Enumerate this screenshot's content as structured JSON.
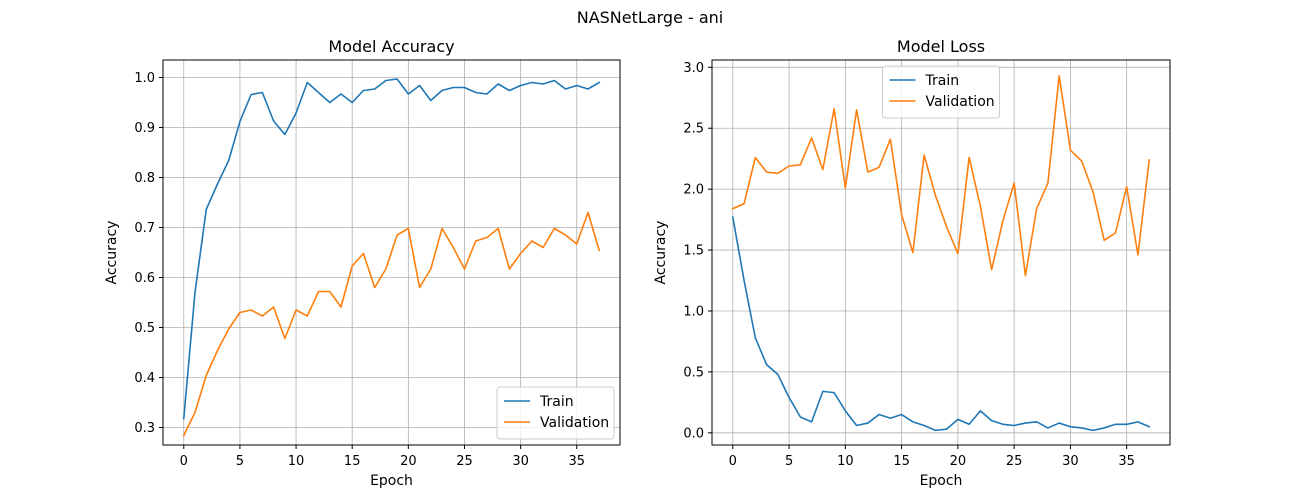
{
  "suptitle": "NASNetLarge - ani",
  "colors": {
    "train": "#1f77b4",
    "validation": "#ff7f0e"
  },
  "chart_data": [
    {
      "type": "line",
      "title": "Model Accuracy",
      "xlabel": "Epoch",
      "ylabel": "Accuracy",
      "xlim": [
        -1.85,
        38.85
      ],
      "ylim": [
        0.265,
        1.035
      ],
      "xticks": [
        0,
        5,
        10,
        15,
        20,
        25,
        30,
        35
      ],
      "yticks": [
        0.3,
        0.4,
        0.5,
        0.6,
        0.7,
        0.8,
        0.9,
        1.0
      ],
      "ytick_labels": [
        "0.3",
        "0.4",
        "0.5",
        "0.6",
        "0.7",
        "0.8",
        "0.9",
        "1.0"
      ],
      "grid": true,
      "legend_position": "lower-right",
      "x": [
        0,
        1,
        2,
        3,
        4,
        5,
        6,
        7,
        8,
        9,
        10,
        11,
        12,
        13,
        14,
        15,
        16,
        17,
        18,
        19,
        20,
        21,
        22,
        23,
        24,
        25,
        26,
        27,
        28,
        29,
        30,
        31,
        32,
        33,
        34,
        35,
        36,
        37
      ],
      "series": [
        {
          "name": "Train",
          "values": [
            0.318,
            0.57,
            0.736,
            0.787,
            0.834,
            0.912,
            0.966,
            0.97,
            0.913,
            0.886,
            0.929,
            0.99,
            0.97,
            0.95,
            0.967,
            0.95,
            0.974,
            0.977,
            0.994,
            0.997,
            0.967,
            0.984,
            0.954,
            0.974,
            0.98,
            0.98,
            0.97,
            0.967,
            0.987,
            0.974,
            0.984,
            0.99,
            0.987,
            0.994,
            0.977,
            0.984,
            0.977,
            0.99
          ]
        },
        {
          "name": "Validation",
          "values": [
            0.284,
            0.33,
            0.404,
            0.454,
            0.497,
            0.53,
            0.535,
            0.523,
            0.541,
            0.478,
            0.535,
            0.523,
            0.572,
            0.572,
            0.541,
            0.623,
            0.648,
            0.58,
            0.617,
            0.685,
            0.698,
            0.58,
            0.617,
            0.698,
            0.66,
            0.617,
            0.673,
            0.68,
            0.698,
            0.617,
            0.648,
            0.673,
            0.66,
            0.698,
            0.685,
            0.667,
            0.73,
            0.654
          ]
        }
      ]
    },
    {
      "type": "line",
      "title": "Model Loss",
      "xlabel": "Epoch",
      "ylabel": "Accuracy",
      "xlim": [
        -1.85,
        38.85
      ],
      "ylim": [
        -0.1,
        3.06
      ],
      "xticks": [
        0,
        5,
        10,
        15,
        20,
        25,
        30,
        35
      ],
      "yticks": [
        0.0,
        0.5,
        1.0,
        1.5,
        2.0,
        2.5,
        3.0
      ],
      "ytick_labels": [
        "0.0",
        "0.5",
        "1.0",
        "1.5",
        "2.0",
        "2.5",
        "3.0"
      ],
      "grid": true,
      "legend_position": "upper-center",
      "x": [
        0,
        1,
        2,
        3,
        4,
        5,
        6,
        7,
        8,
        9,
        10,
        11,
        12,
        13,
        14,
        15,
        16,
        17,
        18,
        19,
        20,
        21,
        22,
        23,
        24,
        25,
        26,
        27,
        28,
        29,
        30,
        31,
        32,
        33,
        34,
        35,
        36,
        37
      ],
      "series": [
        {
          "name": "Train",
          "values": [
            1.77,
            1.25,
            0.78,
            0.56,
            0.48,
            0.29,
            0.13,
            0.09,
            0.34,
            0.33,
            0.18,
            0.06,
            0.08,
            0.15,
            0.12,
            0.15,
            0.09,
            0.06,
            0.02,
            0.03,
            0.11,
            0.07,
            0.18,
            0.1,
            0.07,
            0.06,
            0.08,
            0.09,
            0.04,
            0.08,
            0.05,
            0.04,
            0.02,
            0.04,
            0.07,
            0.07,
            0.09,
            0.05
          ]
        },
        {
          "name": "Validation",
          "values": [
            1.84,
            1.88,
            2.26,
            2.14,
            2.13,
            2.19,
            2.2,
            2.42,
            2.16,
            2.66,
            2.01,
            2.65,
            2.14,
            2.18,
            2.41,
            1.79,
            1.48,
            2.28,
            1.95,
            1.69,
            1.47,
            2.26,
            1.86,
            1.34,
            1.74,
            2.05,
            1.29,
            1.84,
            2.05,
            2.93,
            2.32,
            2.23,
            1.98,
            1.58,
            1.64,
            2.02,
            1.46,
            2.24
          ]
        }
      ]
    }
  ]
}
